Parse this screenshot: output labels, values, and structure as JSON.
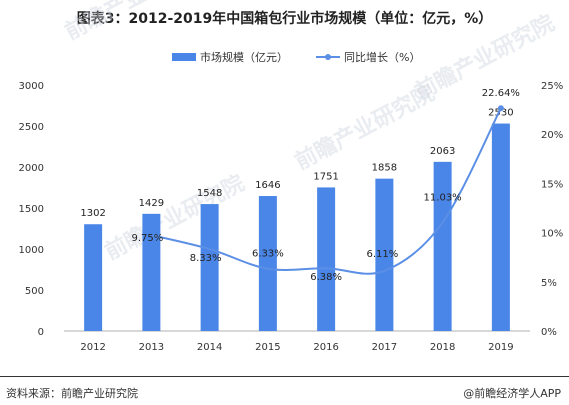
{
  "title": "图表3：2012-2019年中国箱包行业市场规模（单位：亿元，%）",
  "footer": {
    "source": "资料来源：前瞻产业研究院",
    "brand": "@前瞻经济学人APP"
  },
  "watermark": "前瞻产业研究院",
  "colors": {
    "bar": "#4a86e8",
    "line": "#5b8fe6",
    "axis": "#b0b0b0"
  },
  "chart_data": {
    "type": "bar",
    "categories": [
      "2012",
      "2013",
      "2014",
      "2015",
      "2016",
      "2017",
      "2018",
      "2019"
    ],
    "series": [
      {
        "name": "市场规模（亿元）",
        "type": "bar",
        "axis": "left",
        "values": [
          1302,
          1429,
          1548,
          1646,
          1751,
          1858,
          2063,
          2530
        ],
        "labels": [
          "1302",
          "1429",
          "1548",
          "1646",
          "1751",
          "1858",
          "2063",
          "2530"
        ]
      },
      {
        "name": "同比增长（%）",
        "type": "line",
        "axis": "right",
        "values": [
          null,
          9.75,
          8.33,
          6.33,
          6.38,
          6.11,
          11.03,
          22.64
        ],
        "labels": [
          "",
          "9.75%",
          "8.33%",
          "6.33%",
          "6.38%",
          "6.11%",
          "11.03%",
          "22.64%"
        ]
      }
    ],
    "ylim_left": [
      0,
      3000
    ],
    "yticks_left": [
      "0",
      "500",
      "1000",
      "1500",
      "2000",
      "2500",
      "3000"
    ],
    "ylim_right": [
      0,
      25
    ],
    "yticks_right": [
      "0%",
      "5%",
      "10%",
      "15%",
      "20%",
      "25%"
    ],
    "legend_position": "top-center",
    "grid": false
  }
}
